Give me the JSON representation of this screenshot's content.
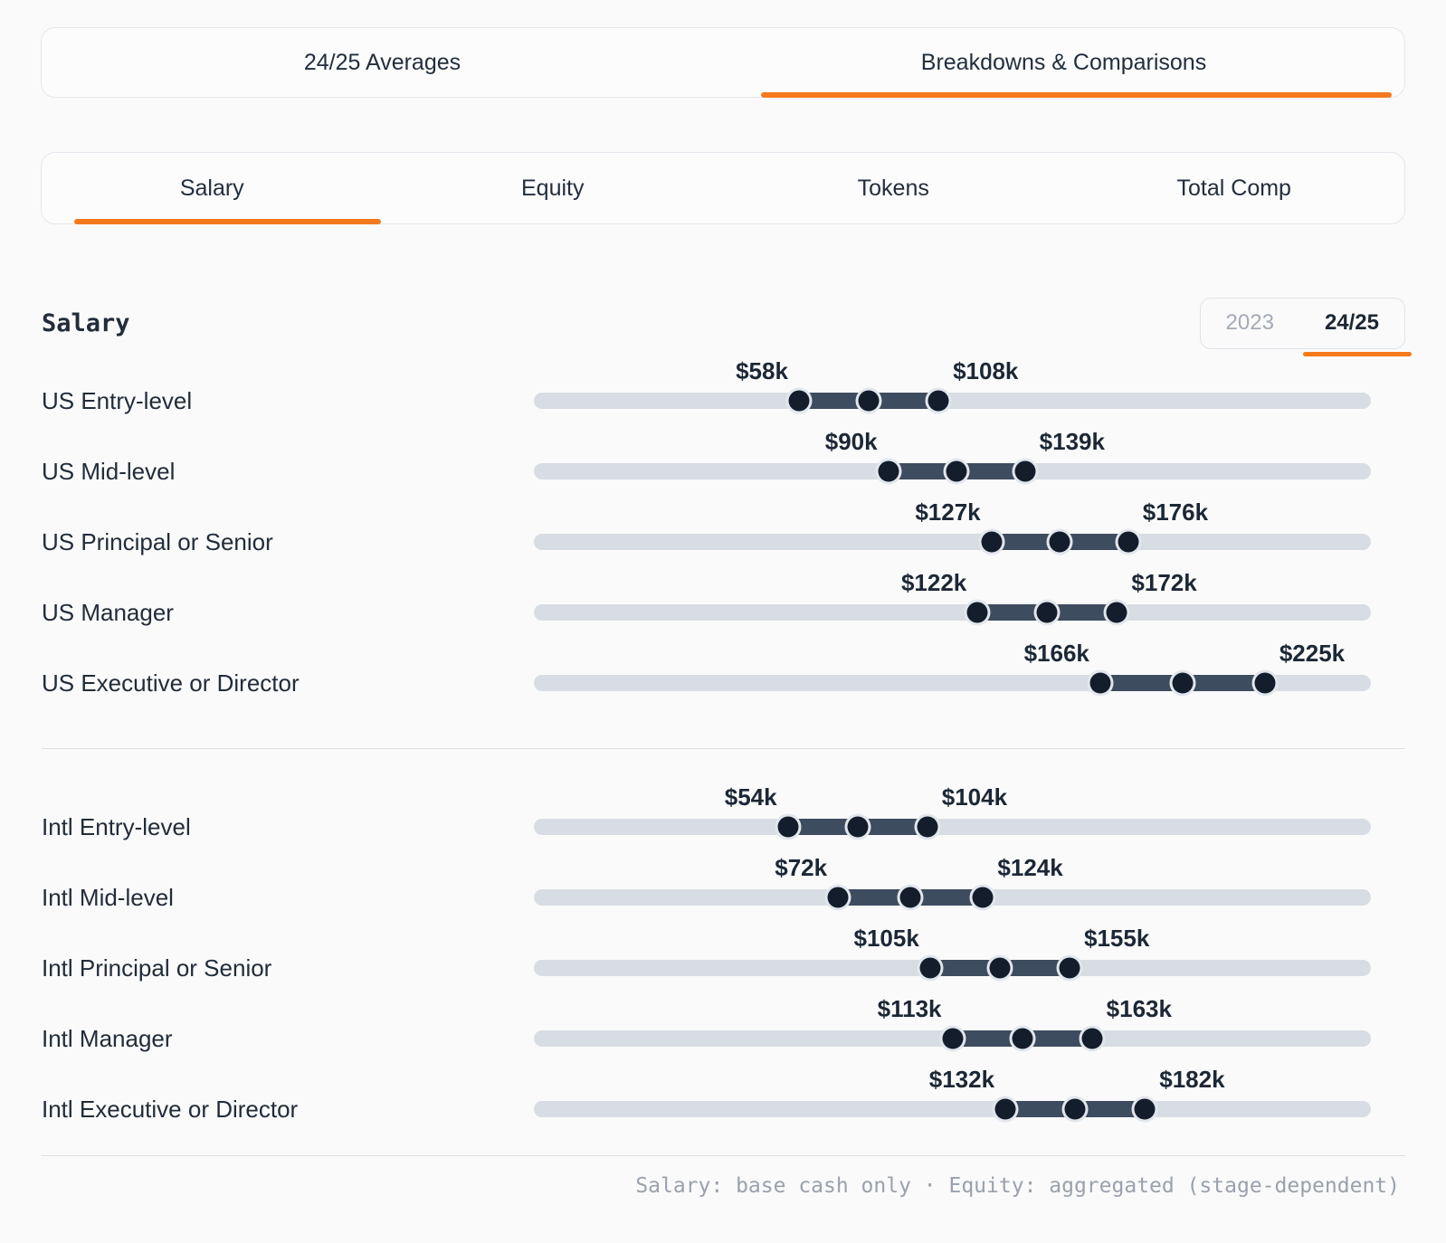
{
  "main_tabs": {
    "items": [
      {
        "label": "24/25 Averages",
        "active": false
      },
      {
        "label": "Breakdowns & Comparisons",
        "active": true
      }
    ]
  },
  "sub_tabs": {
    "items": [
      {
        "label": "Salary",
        "active": true
      },
      {
        "label": "Equity",
        "active": false
      },
      {
        "label": "Tokens",
        "active": false
      },
      {
        "label": "Total Comp",
        "active": false
      }
    ]
  },
  "section": {
    "title": "Salary"
  },
  "year_toggle": {
    "options": [
      {
        "label": "2023",
        "active": false
      },
      {
        "label": "24/25",
        "active": true
      }
    ]
  },
  "footnote": "Salary: base cash only · Equity: aggregated (stage-dependent)",
  "colors": {
    "accent_orange": "#f5791d",
    "track_gray": "#d8dde3",
    "range_fill": "#3e4c5f",
    "dot_dark": "#131d2c",
    "text_dark": "#222c3a",
    "muted_gray": "#9aa1ac",
    "background": "#fafafa"
  },
  "chart_data": {
    "type": "range_bar",
    "title": "Salary",
    "unit": "USD thousands per year",
    "xlim": [
      -37,
      263
    ],
    "grid": false,
    "legend": "none",
    "groups": [
      {
        "name": "US",
        "rows": [
          {
            "label": "US Entry-level",
            "min": 58,
            "max": 108,
            "min_label": "$58k",
            "max_label": "$108k"
          },
          {
            "label": "US Mid-level",
            "min": 90,
            "max": 139,
            "min_label": "$90k",
            "max_label": "$139k"
          },
          {
            "label": "US Principal or Senior",
            "min": 127,
            "max": 176,
            "min_label": "$127k",
            "max_label": "$176k"
          },
          {
            "label": "US Manager",
            "min": 122,
            "max": 172,
            "min_label": "$122k",
            "max_label": "$172k"
          },
          {
            "label": "US Executive or Director",
            "min": 166,
            "max": 225,
            "min_label": "$166k",
            "max_label": "$225k"
          }
        ]
      },
      {
        "name": "Intl",
        "rows": [
          {
            "label": "Intl Entry-level",
            "min": 54,
            "max": 104,
            "min_label": "$54k",
            "max_label": "$104k"
          },
          {
            "label": "Intl Mid-level",
            "min": 72,
            "max": 124,
            "min_label": "$72k",
            "max_label": "$124k"
          },
          {
            "label": "Intl Principal or Senior",
            "min": 105,
            "max": 155,
            "min_label": "$105k",
            "max_label": "$155k"
          },
          {
            "label": "Intl Manager",
            "min": 113,
            "max": 163,
            "min_label": "$113k",
            "max_label": "$163k"
          },
          {
            "label": "Intl Executive or Director",
            "min": 132,
            "max": 182,
            "min_label": "$132k",
            "max_label": "$182k"
          }
        ]
      }
    ]
  }
}
